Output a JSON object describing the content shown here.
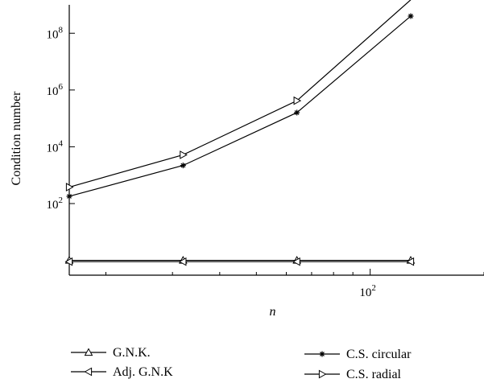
{
  "chart_data": {
    "type": "line",
    "xlabel": "n",
    "ylabel": "Condition number",
    "xscale": "log",
    "yscale": "log",
    "xlim": [
      16,
      200
    ],
    "ylim": [
      0.3,
      1000000000.0
    ],
    "x": [
      16,
      32,
      64,
      128
    ],
    "x_ticks": [
      {
        "value": 100,
        "base": "10",
        "exp": "2"
      }
    ],
    "y_ticks": [
      {
        "value": 100,
        "base": "10",
        "exp": "2"
      },
      {
        "value": 10000,
        "base": "10",
        "exp": "4"
      },
      {
        "value": 1000000,
        "base": "10",
        "exp": "6"
      },
      {
        "value": 100000000,
        "base": "10",
        "exp": "8"
      }
    ],
    "series": [
      {
        "name": "G.N.K.",
        "marker": "triangle-up",
        "values": [
          1.0,
          1.0,
          1.0,
          1.0
        ]
      },
      {
        "name": "Adj. G.N.K",
        "marker": "triangle-left",
        "values": [
          0.9,
          0.9,
          0.9,
          0.9
        ]
      },
      {
        "name": "C.S. circular",
        "marker": "star",
        "values": [
          180,
          2200,
          160000,
          400000000
        ]
      },
      {
        "name": "C.S. radial",
        "marker": "triangle-right",
        "values": [
          380,
          5200,
          420000,
          1500000000
        ]
      }
    ],
    "legend_position": "bottom",
    "grid": false
  }
}
